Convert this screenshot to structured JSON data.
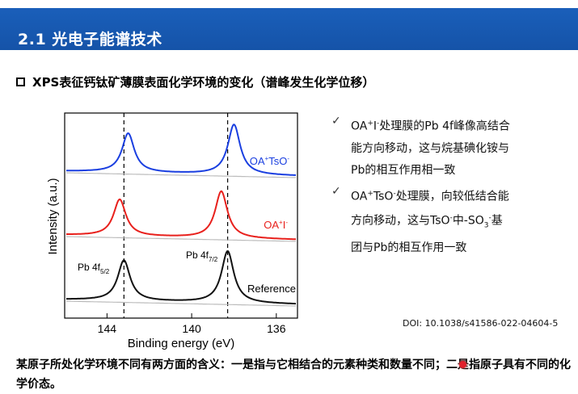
{
  "header": {
    "title": "2.1 光电子能谱技术"
  },
  "section": {
    "heading": "XPS表征钙钛矿薄膜表面化学环境的变化（谱峰发生化学位移）"
  },
  "chart_data": {
    "type": "line",
    "xlabel": "Binding energy (eV)",
    "ylabel": "Intensity (a.u.)",
    "x_ticks": [
      "144",
      "140",
      "136"
    ],
    "xlim": [
      146,
      135
    ],
    "x_reversed": true,
    "dashed_reference_lines_eV": [
      143.2,
      138.3
    ],
    "series": [
      {
        "name": "OA+TsO-",
        "color": "#1a3fe0",
        "peaks_eV": [
          143.0,
          138.0
        ]
      },
      {
        "name": "OA+I-",
        "color": "#e8201c",
        "peaks_eV": [
          143.4,
          138.6
        ]
      },
      {
        "name": "Reference",
        "color": "#111111",
        "peaks_eV": [
          143.2,
          138.3
        ]
      }
    ],
    "annotations": {
      "pb52_main": "Pb 4f",
      "pb52_sub": "5/2",
      "pb72_main": "Pb 4f",
      "pb72_sub": "7/2"
    },
    "labels": {
      "tso_main": "OA",
      "tso_sup1": "+",
      "tso_mid": "TsO",
      "tso_sup2": "-",
      "i_main": "OA",
      "i_sup1": "+",
      "i_mid": "I",
      "i_sup2": "-",
      "ref": "Reference"
    }
  },
  "bullets": [
    {
      "line1_a": "OA",
      "line1_sup1": "+",
      "line1_b": "I",
      "line1_sup2": "-",
      "line1_c": "处理膜的Pb 4f峰像高结合",
      "line2": "能方向移动，这与烷基碘化铵与",
      "line3": "Pb的相互作用相一致"
    },
    {
      "line1_a": "OA",
      "line1_sup1": "+",
      "line1_b": "TsO",
      "line1_sup2": "-",
      "line1_c": "处理膜，向较低结合能",
      "line2_a": "方向移动，这与TsO",
      "line2_sup": "-",
      "line2_b": "中-SO",
      "line2_sub": "3",
      "line2_sup2": "-",
      "line2_c": "基",
      "line3": "团与Pb的相互作用一致"
    }
  ],
  "doi": "DOI: 10.1038/s41586-022-04604-5",
  "bottom": {
    "text": "某原子所处化学环境不同有两方面的含义：一是指与它相结合的元素种类和数量不同；二是指原子具有不同的化学价态。"
  }
}
